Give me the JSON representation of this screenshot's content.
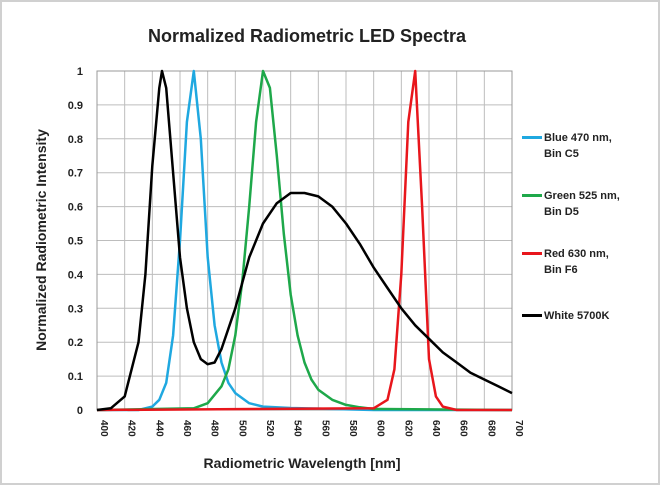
{
  "chart_data": {
    "type": "line",
    "title": "Normalized Radiometric LED Spectra",
    "x_label": "Radiometric Wavelength [nm]",
    "y_label": "Normalized Radiometric Intensity",
    "xlim": [
      400,
      700
    ],
    "ylim": [
      0,
      1
    ],
    "xticks": [
      400,
      420,
      440,
      460,
      480,
      500,
      520,
      540,
      560,
      580,
      600,
      620,
      640,
      660,
      680,
      700
    ],
    "yticks": [
      0,
      0.1,
      0.2,
      0.3,
      0.4,
      0.5,
      0.6,
      0.7,
      0.8,
      0.9,
      1
    ],
    "grid": true,
    "legend": "right",
    "series": [
      {
        "name": "Blue 470 nm, Bin C5",
        "color": "#1fa8e0",
        "x": [
          400,
          430,
          440,
          445,
          450,
          455,
          460,
          465,
          470,
          475,
          480,
          485,
          490,
          495,
          500,
          510,
          520,
          540,
          560,
          600,
          700
        ],
        "values": [
          0,
          0,
          0.01,
          0.03,
          0.08,
          0.22,
          0.5,
          0.85,
          1.0,
          0.8,
          0.45,
          0.25,
          0.14,
          0.08,
          0.05,
          0.02,
          0.01,
          0.006,
          0.004,
          0,
          0
        ]
      },
      {
        "name": "Green 525 nm, Bin D5",
        "color": "#1ea84a",
        "x": [
          400,
          470,
          480,
          490,
          495,
          500,
          505,
          510,
          515,
          520,
          525,
          530,
          535,
          540,
          545,
          550,
          555,
          560,
          570,
          580,
          590,
          600,
          700
        ],
        "values": [
          0,
          0.005,
          0.02,
          0.07,
          0.12,
          0.22,
          0.38,
          0.6,
          0.85,
          1.0,
          0.95,
          0.75,
          0.52,
          0.34,
          0.22,
          0.14,
          0.09,
          0.06,
          0.03,
          0.015,
          0.008,
          0.003,
          0
        ]
      },
      {
        "name": "Red 630 nm, Bin F6",
        "color": "#e8161c",
        "x": [
          400,
          600,
          610,
          615,
          620,
          625,
          630,
          635,
          640,
          645,
          650,
          660,
          700
        ],
        "values": [
          0,
          0.005,
          0.03,
          0.12,
          0.4,
          0.85,
          1.0,
          0.6,
          0.15,
          0.04,
          0.01,
          0,
          0
        ]
      },
      {
        "name": "White 5700K",
        "color": "#000000",
        "x": [
          400,
          410,
          420,
          430,
          435,
          440,
          445,
          447,
          450,
          455,
          460,
          465,
          470,
          475,
          480,
          485,
          490,
          500,
          510,
          520,
          530,
          540,
          550,
          560,
          570,
          580,
          590,
          600,
          610,
          620,
          630,
          640,
          650,
          660,
          670,
          680,
          690,
          700
        ],
        "values": [
          0,
          0.005,
          0.04,
          0.2,
          0.4,
          0.72,
          0.95,
          1.0,
          0.95,
          0.7,
          0.45,
          0.3,
          0.2,
          0.15,
          0.135,
          0.14,
          0.18,
          0.3,
          0.45,
          0.55,
          0.61,
          0.64,
          0.64,
          0.63,
          0.6,
          0.55,
          0.49,
          0.42,
          0.36,
          0.3,
          0.25,
          0.21,
          0.17,
          0.14,
          0.11,
          0.09,
          0.07,
          0.05
        ]
      }
    ]
  }
}
